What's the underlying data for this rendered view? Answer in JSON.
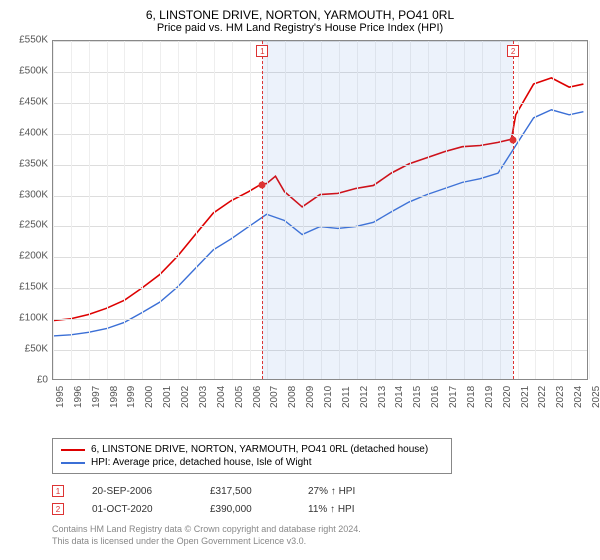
{
  "title": "6, LINSTONE DRIVE, NORTON, YARMOUTH, PO41 0RL",
  "subtitle": "Price paid vs. HM Land Registry's House Price Index (HPI)",
  "chart": {
    "type": "line",
    "background_color": "#ffffff",
    "grid_color": "#dddddd",
    "border_color": "#888888",
    "ylim": [
      0,
      550000
    ],
    "ytick_step": 50000,
    "ytick_labels": [
      "£0",
      "£50K",
      "£100K",
      "£150K",
      "£200K",
      "£250K",
      "£300K",
      "£350K",
      "£400K",
      "£450K",
      "£500K",
      "£550K"
    ],
    "xlim": [
      1995,
      2025
    ],
    "xtick_step": 1,
    "xtick_labels": [
      "1995",
      "1996",
      "1997",
      "1998",
      "1999",
      "2000",
      "2001",
      "2002",
      "2003",
      "2004",
      "2005",
      "2006",
      "2007",
      "2008",
      "2009",
      "2010",
      "2011",
      "2012",
      "2013",
      "2014",
      "2015",
      "2016",
      "2017",
      "2018",
      "2019",
      "2020",
      "2021",
      "2022",
      "2023",
      "2024",
      "2025"
    ],
    "band": {
      "from": 2006.72,
      "to": 2020.75,
      "color": "rgba(100,150,220,0.12)"
    },
    "series": [
      {
        "name": "6, LINSTONE DRIVE, NORTON, YARMOUTH, PO41 0RL (detached house)",
        "color": "#dd0000",
        "line_width": 1.6,
        "x": [
          1995,
          1996,
          1997,
          1998,
          1999,
          2000,
          2001,
          2002,
          2003,
          2004,
          2005,
          2006,
          2006.72,
          2007,
          2007.5,
          2008,
          2009,
          2010,
          2011,
          2012,
          2013,
          2014,
          2015,
          2016,
          2017,
          2018,
          2019,
          2020,
          2020.75,
          2021,
          2022,
          2023,
          2024,
          2024.8
        ],
        "y": [
          95000,
          98000,
          105000,
          115000,
          128000,
          148000,
          170000,
          200000,
          235000,
          270000,
          290000,
          305000,
          317500,
          318000,
          330000,
          305000,
          280000,
          300000,
          302000,
          310000,
          315000,
          335000,
          350000,
          360000,
          370000,
          378000,
          380000,
          385000,
          390000,
          430000,
          480000,
          490000,
          475000,
          480000
        ]
      },
      {
        "name": "HPI: Average price, detached house, Isle of Wight",
        "color": "#3b6fd6",
        "line_width": 1.4,
        "x": [
          1995,
          1996,
          1997,
          1998,
          1999,
          2000,
          2001,
          2002,
          2003,
          2004,
          2005,
          2006,
          2007,
          2008,
          2009,
          2010,
          2011,
          2012,
          2013,
          2014,
          2015,
          2016,
          2017,
          2018,
          2019,
          2020,
          2021,
          2022,
          2023,
          2024,
          2024.8
        ],
        "y": [
          70000,
          72000,
          76000,
          82000,
          92000,
          108000,
          125000,
          150000,
          180000,
          210000,
          228000,
          248000,
          268000,
          258000,
          235000,
          248000,
          245000,
          248000,
          255000,
          272000,
          288000,
          300000,
          310000,
          320000,
          326000,
          335000,
          380000,
          425000,
          438000,
          430000,
          435000
        ]
      }
    ],
    "markers": [
      {
        "idx": "1",
        "x": 2006.72,
        "y": 317500
      },
      {
        "idx": "2",
        "x": 2020.75,
        "y": 390000
      }
    ],
    "marker_color": "#dd0000",
    "label_fontsize": 10,
    "title_fontsize": 12
  },
  "legend": {
    "items": [
      {
        "color": "#dd0000",
        "label": "6, LINSTONE DRIVE, NORTON, YARMOUTH, PO41 0RL (detached house)"
      },
      {
        "color": "#3b6fd6",
        "label": "HPI: Average price, detached house, Isle of Wight"
      }
    ]
  },
  "sales": [
    {
      "idx": "1",
      "date": "20-SEP-2006",
      "price": "£317,500",
      "delta": "27% ↑ HPI"
    },
    {
      "idx": "2",
      "date": "01-OCT-2020",
      "price": "£390,000",
      "delta": "11% ↑ HPI"
    }
  ],
  "footer": {
    "line1": "Contains HM Land Registry data © Crown copyright and database right 2024.",
    "line2": "This data is licensed under the Open Government Licence v3.0."
  }
}
